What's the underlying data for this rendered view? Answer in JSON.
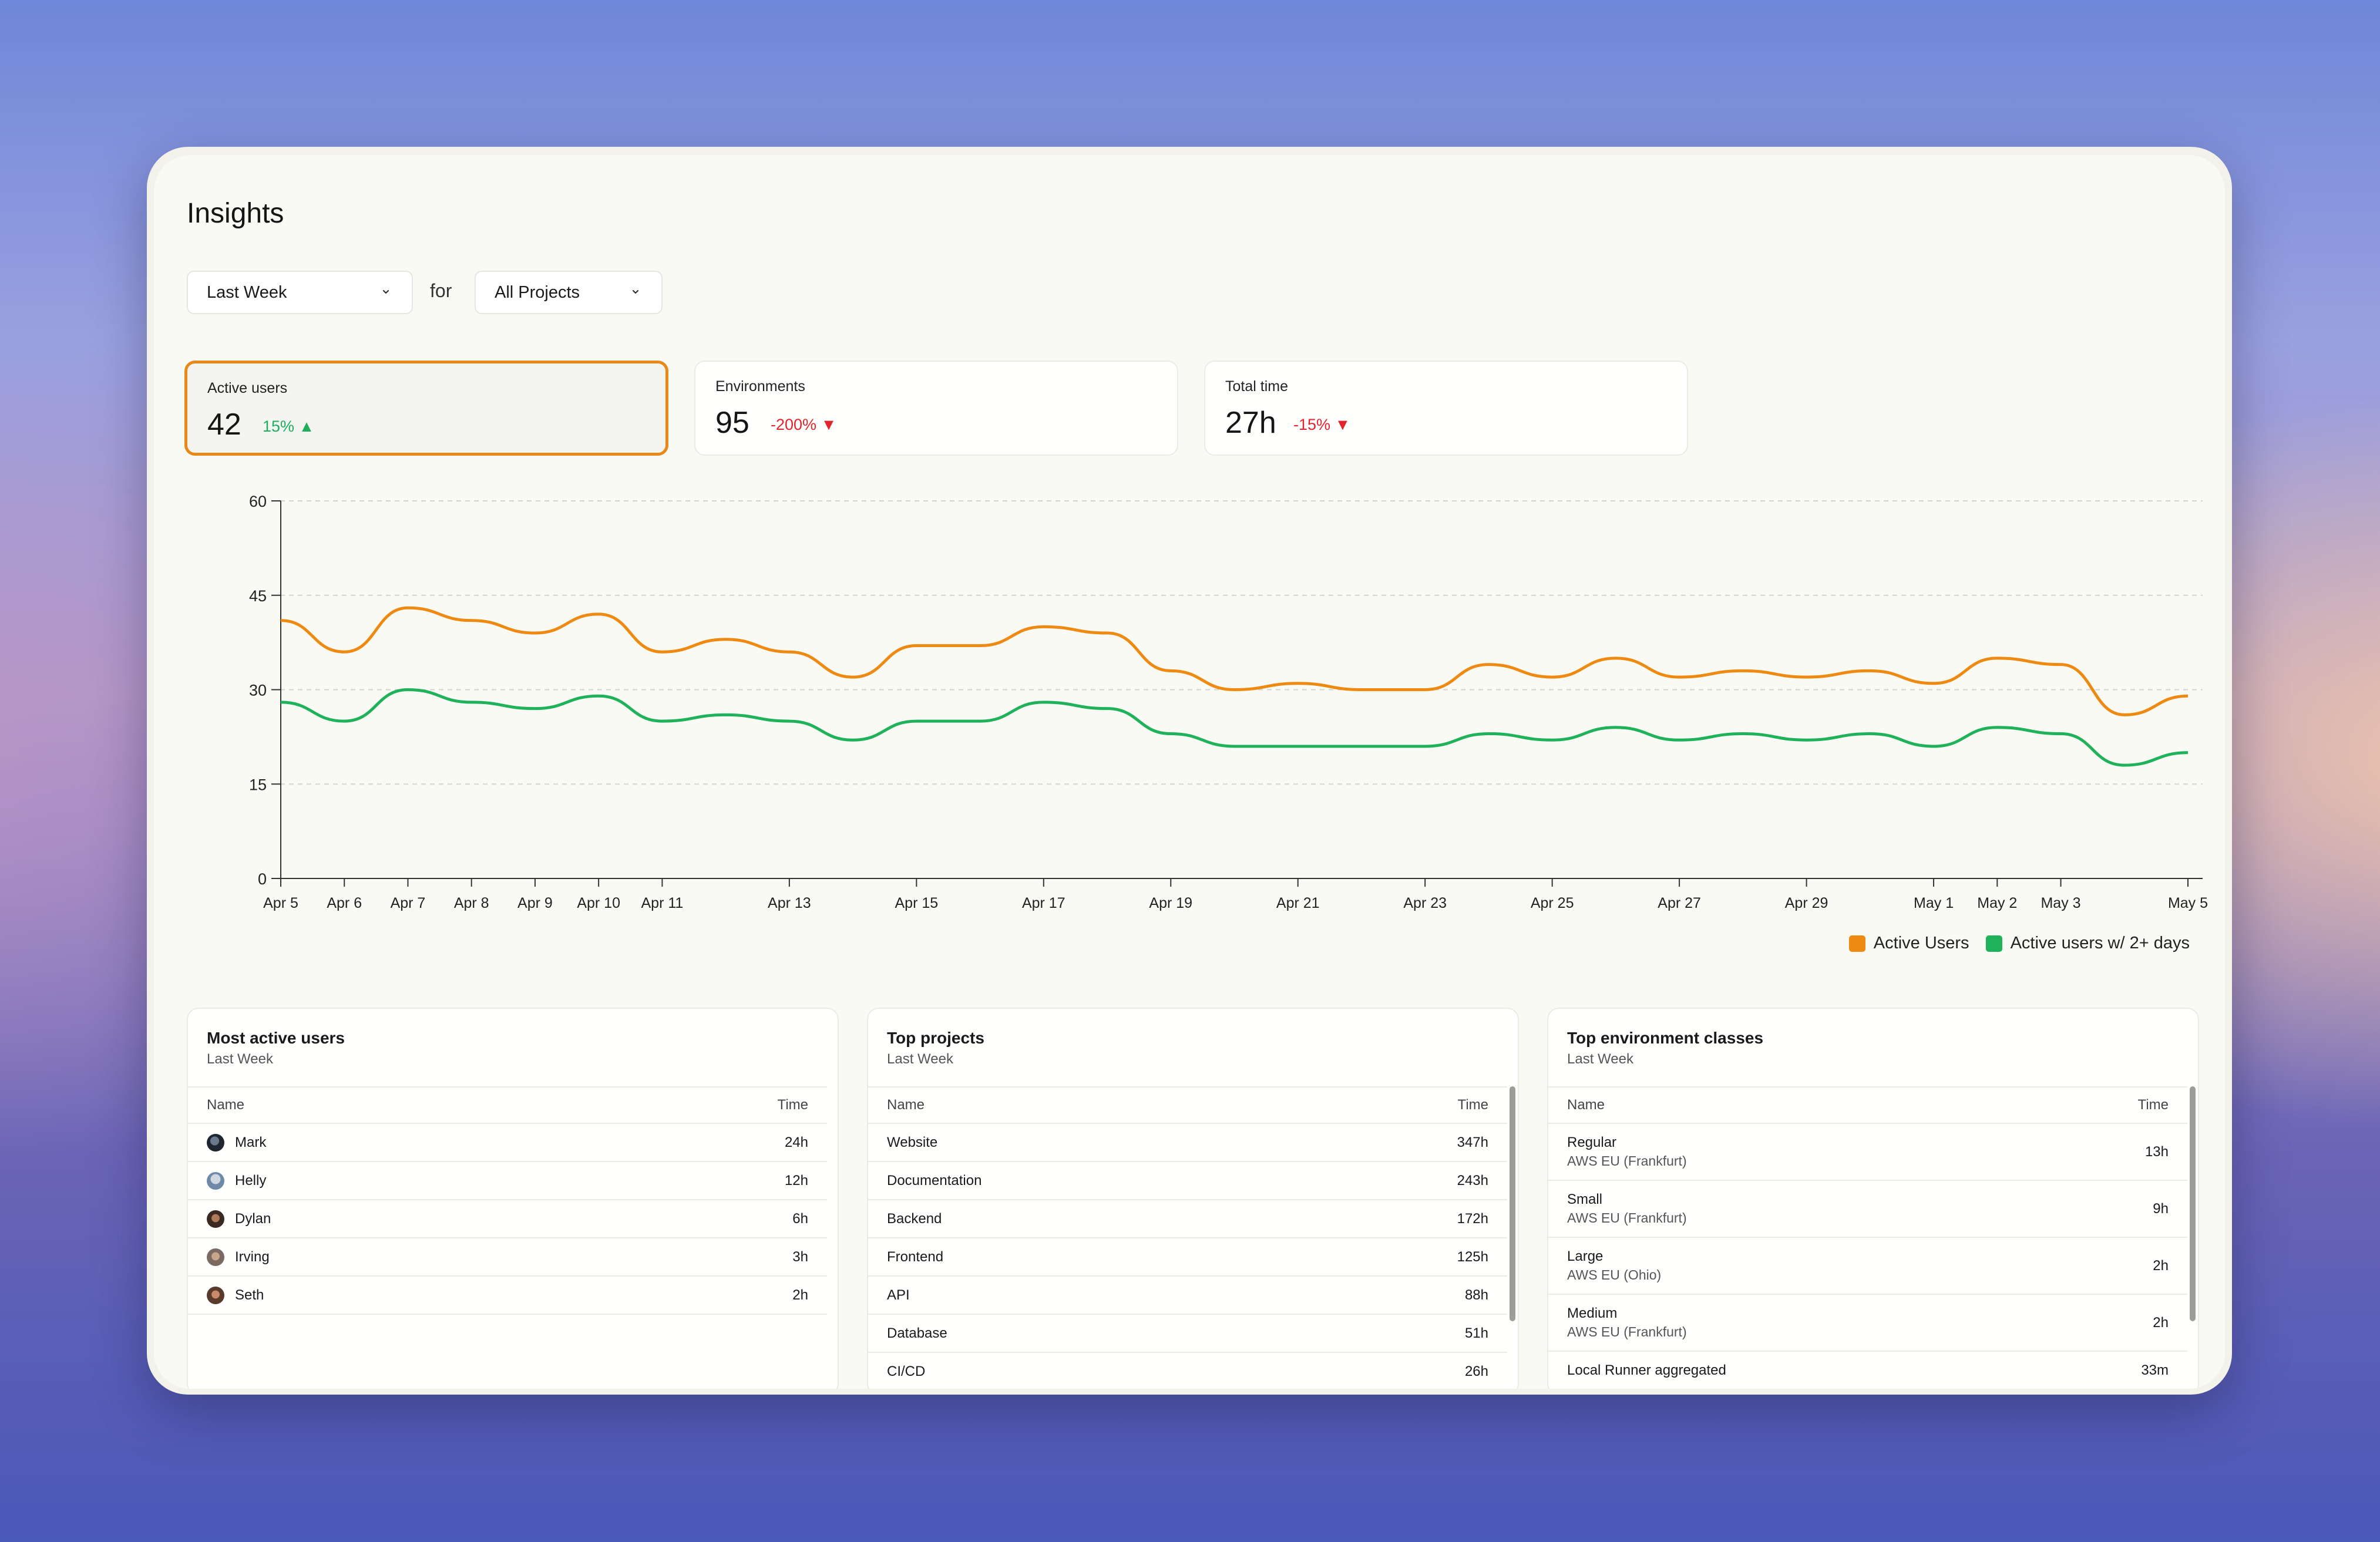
{
  "page": {
    "title": "Insights"
  },
  "filters": {
    "period": "Last Week",
    "for_label": "for",
    "project": "All Projects"
  },
  "stats": [
    {
      "label": "Active users",
      "value": "42",
      "delta": "15%",
      "direction": "up"
    },
    {
      "label": "Environments",
      "value": "95",
      "delta": "-200%",
      "direction": "down"
    },
    {
      "label": "Total time",
      "value": "27h",
      "delta": "-15%",
      "direction": "down"
    }
  ],
  "colors": {
    "accent": "#e8891a",
    "up": "#1fae5c",
    "down": "#e2242c",
    "series_active": "#ee8a12",
    "series_active2": "#20b25a"
  },
  "chart_data": {
    "type": "line",
    "x": [
      "Apr 5",
      "Apr 6",
      "Apr 7",
      "Apr 8",
      "Apr 9",
      "Apr 10",
      "Apr 11",
      "Apr 12",
      "Apr 13",
      "Apr 14",
      "Apr 15",
      "Apr 16",
      "Apr 17",
      "Apr 18",
      "Apr 19",
      "Apr 20",
      "Apr 21",
      "Apr 22",
      "Apr 23",
      "Apr 24",
      "Apr 25",
      "Apr 26",
      "Apr 27",
      "Apr 28",
      "Apr 29",
      "Apr 30",
      "May 1",
      "May 2",
      "May 3",
      "May 4",
      "May 5"
    ],
    "xticks": [
      "Apr 5",
      "Apr 6",
      "Apr 7",
      "Apr 8",
      "Apr 9",
      "Apr 10",
      "Apr 11",
      "Apr 13",
      "Apr 15",
      "Apr 17",
      "Apr 19",
      "Apr 21",
      "Apr 23",
      "Apr 25",
      "Apr 27",
      "Apr 29",
      "May 1",
      "May 2",
      "May 3",
      "May 5"
    ],
    "yticks": [
      0,
      15,
      30,
      45,
      60
    ],
    "ylim": [
      0,
      60
    ],
    "grid": true,
    "legend": "bottom-right",
    "series": [
      {
        "name": "Active Users",
        "color": "#ee8a12",
        "values": [
          41,
          36,
          43,
          41,
          39,
          42,
          36,
          38,
          36,
          32,
          37,
          37,
          40,
          39,
          33,
          30,
          31,
          30,
          30,
          34,
          32,
          35,
          32,
          33,
          32,
          33,
          31,
          35,
          34,
          26,
          29
        ]
      },
      {
        "name": "Active users w/ 2+ days",
        "color": "#20b25a",
        "values": [
          28,
          25,
          30,
          28,
          27,
          29,
          25,
          26,
          25,
          22,
          25,
          25,
          28,
          27,
          23,
          21,
          21,
          21,
          21,
          23,
          22,
          24,
          22,
          23,
          22,
          23,
          21,
          24,
          23,
          18,
          20
        ]
      }
    ]
  },
  "tables": {
    "users": {
      "title": "Most active users",
      "subtitle": "Last Week",
      "col_name": "Name",
      "col_time": "Time",
      "rows": [
        {
          "name": "Mark",
          "time": "24h"
        },
        {
          "name": "Helly",
          "time": "12h"
        },
        {
          "name": "Dylan",
          "time": "6h"
        },
        {
          "name": "Irving",
          "time": "3h"
        },
        {
          "name": "Seth",
          "time": "2h"
        }
      ]
    },
    "projects": {
      "title": "Top projects",
      "subtitle": "Last Week",
      "col_name": "Name",
      "col_time": "Time",
      "rows": [
        {
          "name": "Website",
          "time": "347h"
        },
        {
          "name": "Documentation",
          "time": "243h"
        },
        {
          "name": "Backend",
          "time": "172h"
        },
        {
          "name": "Frontend",
          "time": "125h"
        },
        {
          "name": "API",
          "time": "88h"
        },
        {
          "name": "Database",
          "time": "51h"
        },
        {
          "name": "CI/CD",
          "time": "26h"
        }
      ]
    },
    "envs": {
      "title": "Top environment classes",
      "subtitle": "Last Week",
      "col_name": "Name",
      "col_time": "Time",
      "rows": [
        {
          "name": "Regular",
          "region": "AWS EU (Frankfurt)",
          "time": "13h"
        },
        {
          "name": "Small",
          "region": "AWS EU (Frankfurt)",
          "time": "9h"
        },
        {
          "name": "Large",
          "region": "AWS EU (Ohio)",
          "time": "2h"
        },
        {
          "name": "Medium",
          "region": "AWS EU (Frankfurt)",
          "time": "2h"
        },
        {
          "name": "Local Runner aggregated",
          "region": "",
          "time": "33m"
        }
      ]
    }
  }
}
